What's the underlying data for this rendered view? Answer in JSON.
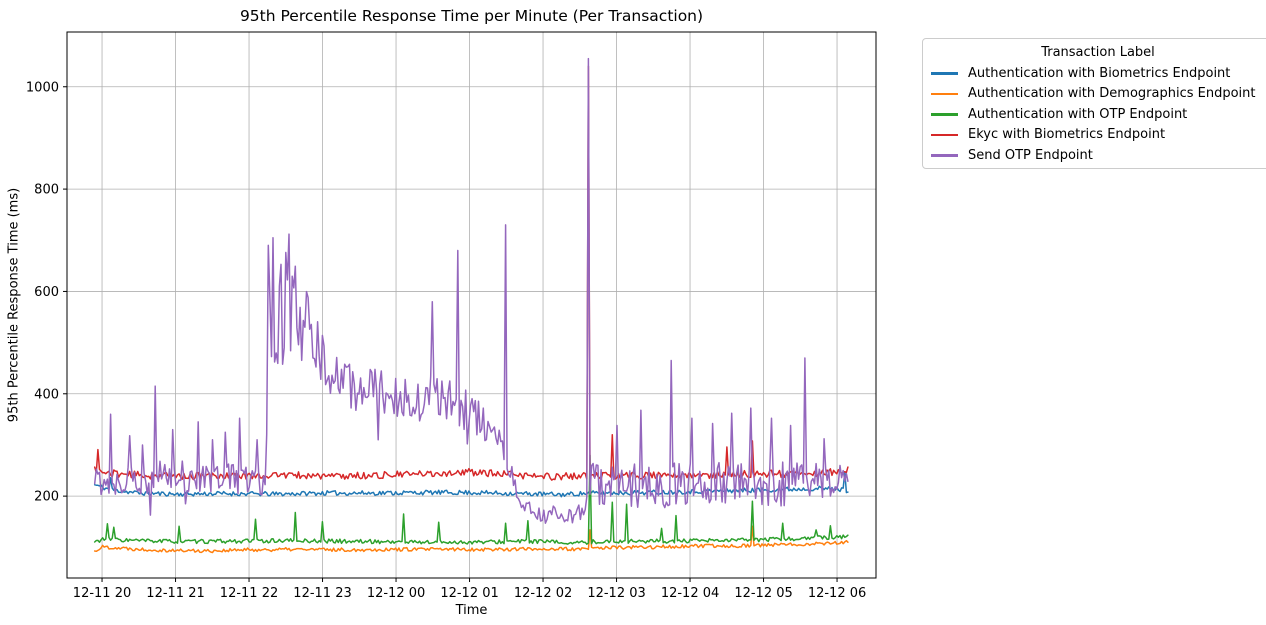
{
  "chart_data": {
    "type": "line",
    "title": "95th Percentile Response Time per Minute (Per Transaction)",
    "legend": {
      "title": "Transaction Label",
      "position": "outside upper right"
    },
    "grid": true,
    "style": {
      "grid_color": "#b0b0b0",
      "spine_color": "#000000",
      "background": "#ffffff"
    },
    "x_axis": {
      "label": "Time",
      "minutes_relative_to": "12-11 20:00",
      "xlim_minutes": [
        -28.6,
        631.8
      ],
      "tick_minutes": [
        0,
        60,
        120,
        180,
        240,
        300,
        360,
        420,
        480,
        540,
        600
      ],
      "tick_labels": [
        "12-11 20",
        "12-11 21",
        "12-11 22",
        "12-11 23",
        "12-12 00",
        "12-12 01",
        "12-12 02",
        "12-12 03",
        "12-12 04",
        "12-12 05",
        "12-12 06"
      ]
    },
    "y_axis": {
      "label": "95th Percentile Response Time (ms)",
      "ticks": [
        200,
        400,
        600,
        800,
        1000
      ],
      "ylim": [
        40,
        1107
      ]
    },
    "time_range_minutes": [
      -6,
      609
    ],
    "sample_step_minutes": 1.3,
    "series": [
      {
        "id": "auth-biometrics",
        "name": "Authentication with Biometrics Endpoint",
        "color": "#1f77b4",
        "seed": 11,
        "keyframes": [
          [
            -6,
            222
          ],
          [
            5,
            214
          ],
          [
            15,
            210
          ],
          [
            30,
            206
          ],
          [
            60,
            204
          ],
          [
            100,
            205
          ],
          [
            140,
            204
          ],
          [
            180,
            206
          ],
          [
            220,
            206
          ],
          [
            260,
            207
          ],
          [
            300,
            207
          ],
          [
            340,
            205
          ],
          [
            375,
            203
          ],
          [
            400,
            206
          ],
          [
            440,
            207
          ],
          [
            480,
            209
          ],
          [
            520,
            211
          ],
          [
            555,
            213
          ],
          [
            585,
            215
          ],
          [
            600,
            214
          ],
          [
            609,
            211
          ]
        ],
        "noise": [
          [
            -6,
            4.5
          ],
          [
            609,
            4.5
          ]
        ],
        "spikes": [
          [
            7,
            236
          ],
          [
            606,
            247
          ]
        ]
      },
      {
        "id": "auth-demographics",
        "name": "Authentication with Demographics Endpoint",
        "color": "#ff7f0e",
        "seed": 22,
        "keyframes": [
          [
            -6,
            92
          ],
          [
            0,
            101
          ],
          [
            25,
            97
          ],
          [
            55,
            94
          ],
          [
            85,
            93
          ],
          [
            120,
            95
          ],
          [
            160,
            96
          ],
          [
            200,
            95
          ],
          [
            240,
            96
          ],
          [
            280,
            96
          ],
          [
            320,
            96
          ],
          [
            360,
            97
          ],
          [
            395,
            96
          ],
          [
            400,
            99
          ],
          [
            440,
            100
          ],
          [
            480,
            102
          ],
          [
            520,
            103
          ],
          [
            555,
            105
          ],
          [
            580,
            107
          ],
          [
            600,
            109
          ],
          [
            609,
            110
          ]
        ],
        "noise": [
          [
            -6,
            3.5
          ],
          [
            609,
            3.5
          ]
        ],
        "spikes": [
          [
            398,
            134
          ],
          [
            531,
            141
          ]
        ]
      },
      {
        "id": "auth-otp",
        "name": "Authentication with OTP Endpoint",
        "color": "#2ca02c",
        "seed": 33,
        "keyframes": [
          [
            -6,
            110
          ],
          [
            0,
            116
          ],
          [
            30,
            113
          ],
          [
            70,
            111
          ],
          [
            110,
            112
          ],
          [
            150,
            113
          ],
          [
            190,
            112
          ],
          [
            230,
            111
          ],
          [
            270,
            110
          ],
          [
            310,
            110
          ],
          [
            350,
            112
          ],
          [
            390,
            108
          ],
          [
            400,
            111
          ],
          [
            440,
            112
          ],
          [
            480,
            112
          ],
          [
            520,
            114
          ],
          [
            555,
            116
          ],
          [
            580,
            118
          ],
          [
            600,
            120
          ],
          [
            609,
            121
          ]
        ],
        "noise": [
          [
            -6,
            4
          ],
          [
            609,
            4
          ]
        ],
        "spikes": [
          [
            4,
            146
          ],
          [
            10,
            139
          ],
          [
            63,
            141
          ],
          [
            125,
            155
          ],
          [
            158,
            168
          ],
          [
            180,
            150
          ],
          [
            246,
            165
          ],
          [
            275,
            149
          ],
          [
            330,
            147
          ],
          [
            347,
            152
          ],
          [
            398,
            280
          ],
          [
            417,
            188
          ],
          [
            428,
            184
          ],
          [
            457,
            137
          ],
          [
            468,
            162
          ],
          [
            531,
            190
          ],
          [
            556,
            147
          ],
          [
            583,
            134
          ],
          [
            595,
            142
          ]
        ]
      },
      {
        "id": "ekyc-biometrics",
        "name": "Ekyc with Biometrics Endpoint",
        "color": "#d62728",
        "seed": 44,
        "keyframes": [
          [
            -6,
            252
          ],
          [
            0,
            246
          ],
          [
            30,
            241
          ],
          [
            70,
            239
          ],
          [
            110,
            240
          ],
          [
            150,
            241
          ],
          [
            190,
            239
          ],
          [
            230,
            241
          ],
          [
            270,
            244
          ],
          [
            300,
            247
          ],
          [
            330,
            242
          ],
          [
            365,
            238
          ],
          [
            395,
            240
          ],
          [
            420,
            239
          ],
          [
            450,
            241
          ],
          [
            480,
            240
          ],
          [
            510,
            242
          ],
          [
            535,
            244
          ],
          [
            560,
            243
          ],
          [
            580,
            245
          ],
          [
            600,
            248
          ],
          [
            609,
            251
          ]
        ],
        "noise": [
          [
            -6,
            7
          ],
          [
            609,
            7
          ]
        ],
        "spikes": [
          [
            -3,
            291
          ],
          [
            397,
            1040
          ],
          [
            417,
            320
          ],
          [
            510,
            296
          ],
          [
            531,
            308
          ]
        ]
      },
      {
        "id": "send-otp",
        "name": "Send OTP Endpoint",
        "color": "#9467bd",
        "seed": 55,
        "keyframes": [
          [
            -6,
            228
          ],
          [
            0,
            232
          ],
          [
            40,
            236
          ],
          [
            80,
            238
          ],
          [
            120,
            234
          ],
          [
            134,
            232
          ],
          [
            136,
            580
          ],
          [
            148,
            570
          ],
          [
            160,
            545
          ],
          [
            170,
            505
          ],
          [
            180,
            465
          ],
          [
            192,
            430
          ],
          [
            205,
            410
          ],
          [
            235,
            400
          ],
          [
            265,
            390
          ],
          [
            292,
            380
          ],
          [
            305,
            355
          ],
          [
            315,
            330
          ],
          [
            325,
            298
          ],
          [
            333,
            258
          ],
          [
            339,
            196
          ],
          [
            346,
            176
          ],
          [
            356,
            165
          ],
          [
            370,
            166
          ],
          [
            382,
            160
          ],
          [
            390,
            168
          ],
          [
            395,
            186
          ],
          [
            399,
            224
          ],
          [
            450,
            221
          ],
          [
            520,
            222
          ],
          [
            575,
            226
          ],
          [
            600,
            229
          ],
          [
            609,
            242
          ]
        ],
        "noise": [
          [
            -6,
            32
          ],
          [
            135,
            32
          ],
          [
            136,
            128
          ],
          [
            158,
            105
          ],
          [
            172,
            75
          ],
          [
            186,
            48
          ],
          [
            300,
            46
          ],
          [
            318,
            36
          ],
          [
            331,
            24
          ],
          [
            338,
            16
          ],
          [
            395,
            16
          ],
          [
            399,
            44
          ],
          [
            555,
            44
          ],
          [
            580,
            38
          ],
          [
            609,
            28
          ]
        ],
        "spikes": [
          [
            7,
            360
          ],
          [
            22,
            318
          ],
          [
            33,
            300
          ],
          [
            39,
            163
          ],
          [
            44,
            415
          ],
          [
            58,
            330
          ],
          [
            68,
            185
          ],
          [
            78,
            345
          ],
          [
            90,
            310
          ],
          [
            100,
            325
          ],
          [
            112,
            352
          ],
          [
            126,
            310
          ],
          [
            136,
            690
          ],
          [
            139,
            705
          ],
          [
            152,
            712
          ],
          [
            226,
            310
          ],
          [
            270,
            580
          ],
          [
            290,
            680
          ],
          [
            298,
            302
          ],
          [
            330,
            730
          ],
          [
            362,
            147
          ],
          [
            378,
            150
          ],
          [
            397,
            1055
          ],
          [
            420,
            338
          ],
          [
            440,
            368
          ],
          [
            464,
            465
          ],
          [
            482,
            352
          ],
          [
            498,
            342
          ],
          [
            514,
            362
          ],
          [
            530,
            372
          ],
          [
            546,
            352
          ],
          [
            562,
            338
          ],
          [
            574,
            470
          ],
          [
            590,
            312
          ]
        ]
      }
    ]
  }
}
